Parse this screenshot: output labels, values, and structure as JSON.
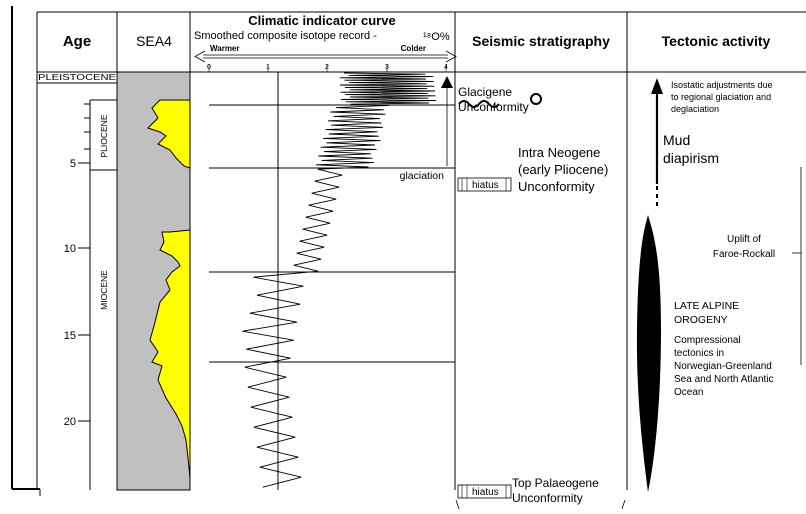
{
  "columns": {
    "age": "Age",
    "sea4": "SEA4",
    "climate_title": "Climatic indicator curve",
    "climate_subtitle": "Smoothed composite isotope record -",
    "isotope_symbol": "¹⁸O%",
    "warmer": "Warmer",
    "colder": "Colder",
    "seismic": "Seismic stratigraphy",
    "tectonic": "Tectonic activity"
  },
  "isotope_scale": [
    "0",
    "1",
    "2",
    "3",
    "4"
  ],
  "age_ticks": [
    {
      "label": "5",
      "age": 5
    },
    {
      "label": "10",
      "age": 10
    },
    {
      "label": "15",
      "age": 15
    },
    {
      "label": "20",
      "age": 20
    }
  ],
  "epochs": {
    "pleistocene": "PLEISTOCENE",
    "pliocene": "PLIOCENE",
    "miocene": "MIOCENE"
  },
  "annotations": {
    "glaciation": "glaciation"
  },
  "seismic": {
    "glacigene_1": "Glacigene",
    "glacigene_2": "Unconformity",
    "intra_1": "Intra Neogene",
    "intra_2": "(early Pliocene)",
    "intra_3": "Unconformity",
    "hiatus_1": "hiatus",
    "top_1": "Top Palaeogene",
    "top_2": "Unconformity",
    "hiatus_2": "hiatus"
  },
  "tectonic": {
    "isostatic_1": "Isostatic adjustments due",
    "isostatic_2": "to regional glaciation and",
    "isostatic_3": "deglaciation",
    "mud_1": "Mud",
    "mud_2": "diapirism",
    "uplift_1": "Uplift of",
    "uplift_2": "Faroe-Rockall",
    "alpine_1": "LATE ALPINE",
    "alpine_2": "OROGENY",
    "comp_1": "Compressional",
    "comp_2": "tectonics in",
    "comp_3": "Norwegian-Greenland",
    "comp_4": "Sea and North Atlantic",
    "comp_5": "Ocean"
  },
  "colors": {
    "sea_fill": "#c0c0c0",
    "yellow_fill": "#ffff00",
    "line": "#000000"
  }
}
